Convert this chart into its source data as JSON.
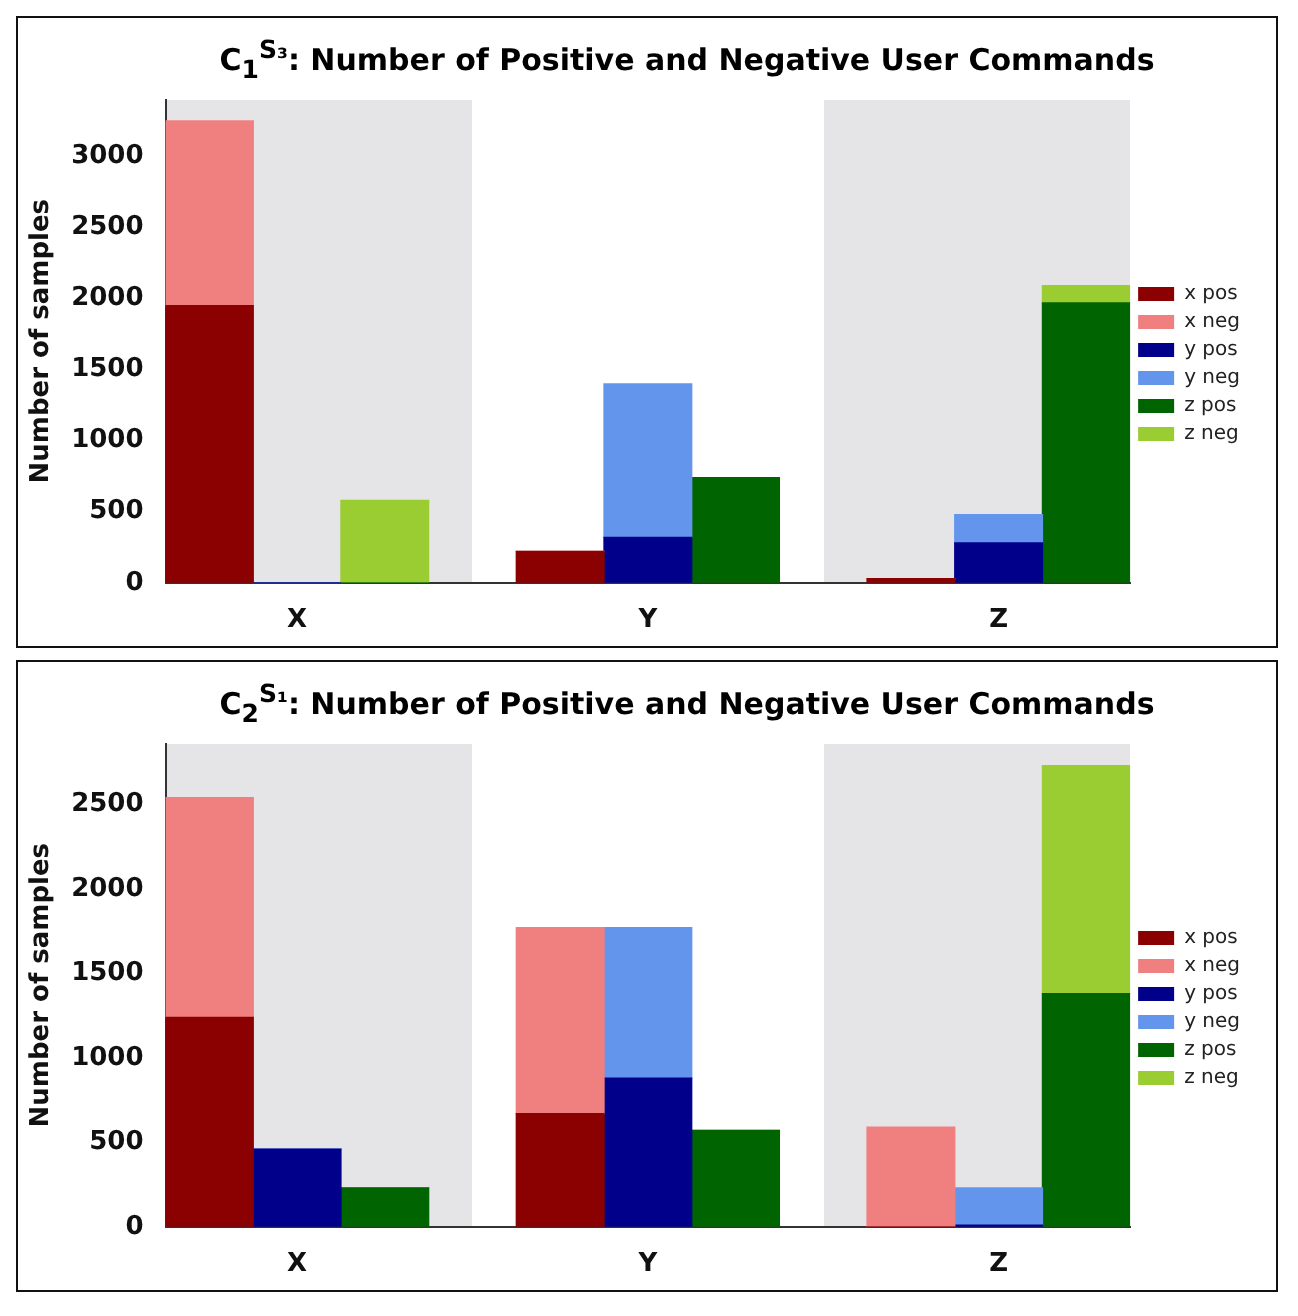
{
  "chart_data": [
    {
      "type": "bar",
      "title": "C$_{1}$$^{S₃}$: Number of Positive and Negative User Commands",
      "ylabel": "Number of samples",
      "categories": [
        null,
        "X",
        null,
        null,
        null,
        "Y",
        null,
        null,
        null,
        "Z",
        null
      ],
      "stacked": true,
      "ylim": [
        0,
        3400
      ],
      "yticks": [
        0,
        500,
        1000,
        1500,
        2000,
        2500,
        3000
      ],
      "grid": false,
      "legend": "right",
      "series": [
        {
          "name": "x pos",
          "color": "#8b0000",
          "values": [
            1950,
            null,
            null,
            null,
            220,
            null,
            null,
            null,
            30,
            null,
            null
          ]
        },
        {
          "name": "x neg",
          "color": "#f08080",
          "values": [
            1300,
            null,
            null,
            null,
            0,
            null,
            null,
            null,
            0,
            null,
            null
          ]
        },
        {
          "name": "y pos",
          "color": "#00008b",
          "values": [
            null,
            0,
            null,
            null,
            null,
            320,
            null,
            null,
            null,
            280,
            null
          ]
        },
        {
          "name": "y neg",
          "color": "#6495ed",
          "values": [
            null,
            0,
            null,
            null,
            null,
            1080,
            null,
            null,
            null,
            200,
            null
          ]
        },
        {
          "name": "z pos",
          "color": "#006400",
          "values": [
            null,
            null,
            0,
            null,
            null,
            null,
            740,
            null,
            null,
            null,
            1970
          ]
        },
        {
          "name": "z neg",
          "color": "#9acd32",
          "values": [
            null,
            null,
            580,
            null,
            null,
            null,
            0,
            null,
            null,
            null,
            120
          ]
        }
      ]
    },
    {
      "type": "bar",
      "title": "C$_{2}$$^{S₁}$: Number of Positive and Negative User Commands",
      "ylabel": "Number of samples",
      "categories": [
        null,
        "X",
        null,
        null,
        null,
        "Y",
        null,
        null,
        null,
        "Z",
        null
      ],
      "stacked": true,
      "ylim": [
        0,
        2860
      ],
      "yticks": [
        0,
        500,
        1000,
        1500,
        2000,
        2500
      ],
      "grid": false,
      "legend": "right",
      "series": [
        {
          "name": "x pos",
          "color": "#8b0000",
          "values": [
            1240,
            null,
            null,
            null,
            670,
            null,
            null,
            null,
            0,
            null,
            null
          ]
        },
        {
          "name": "x neg",
          "color": "#f08080",
          "values": [
            1300,
            null,
            null,
            null,
            1100,
            null,
            null,
            null,
            590,
            null,
            null
          ]
        },
        {
          "name": "y pos",
          "color": "#00008b",
          "values": [
            null,
            460,
            null,
            null,
            null,
            880,
            null,
            null,
            null,
            10,
            null
          ]
        },
        {
          "name": "y neg",
          "color": "#6495ed",
          "values": [
            null,
            0,
            null,
            null,
            null,
            890,
            null,
            null,
            null,
            220,
            null
          ]
        },
        {
          "name": "z pos",
          "color": "#006400",
          "values": [
            null,
            null,
            230,
            null,
            null,
            null,
            570,
            null,
            null,
            null,
            1380
          ]
        },
        {
          "name": "z neg",
          "color": "#9acd32",
          "values": [
            null,
            null,
            0,
            null,
            null,
            null,
            0,
            null,
            null,
            null,
            1350
          ]
        }
      ]
    }
  ]
}
